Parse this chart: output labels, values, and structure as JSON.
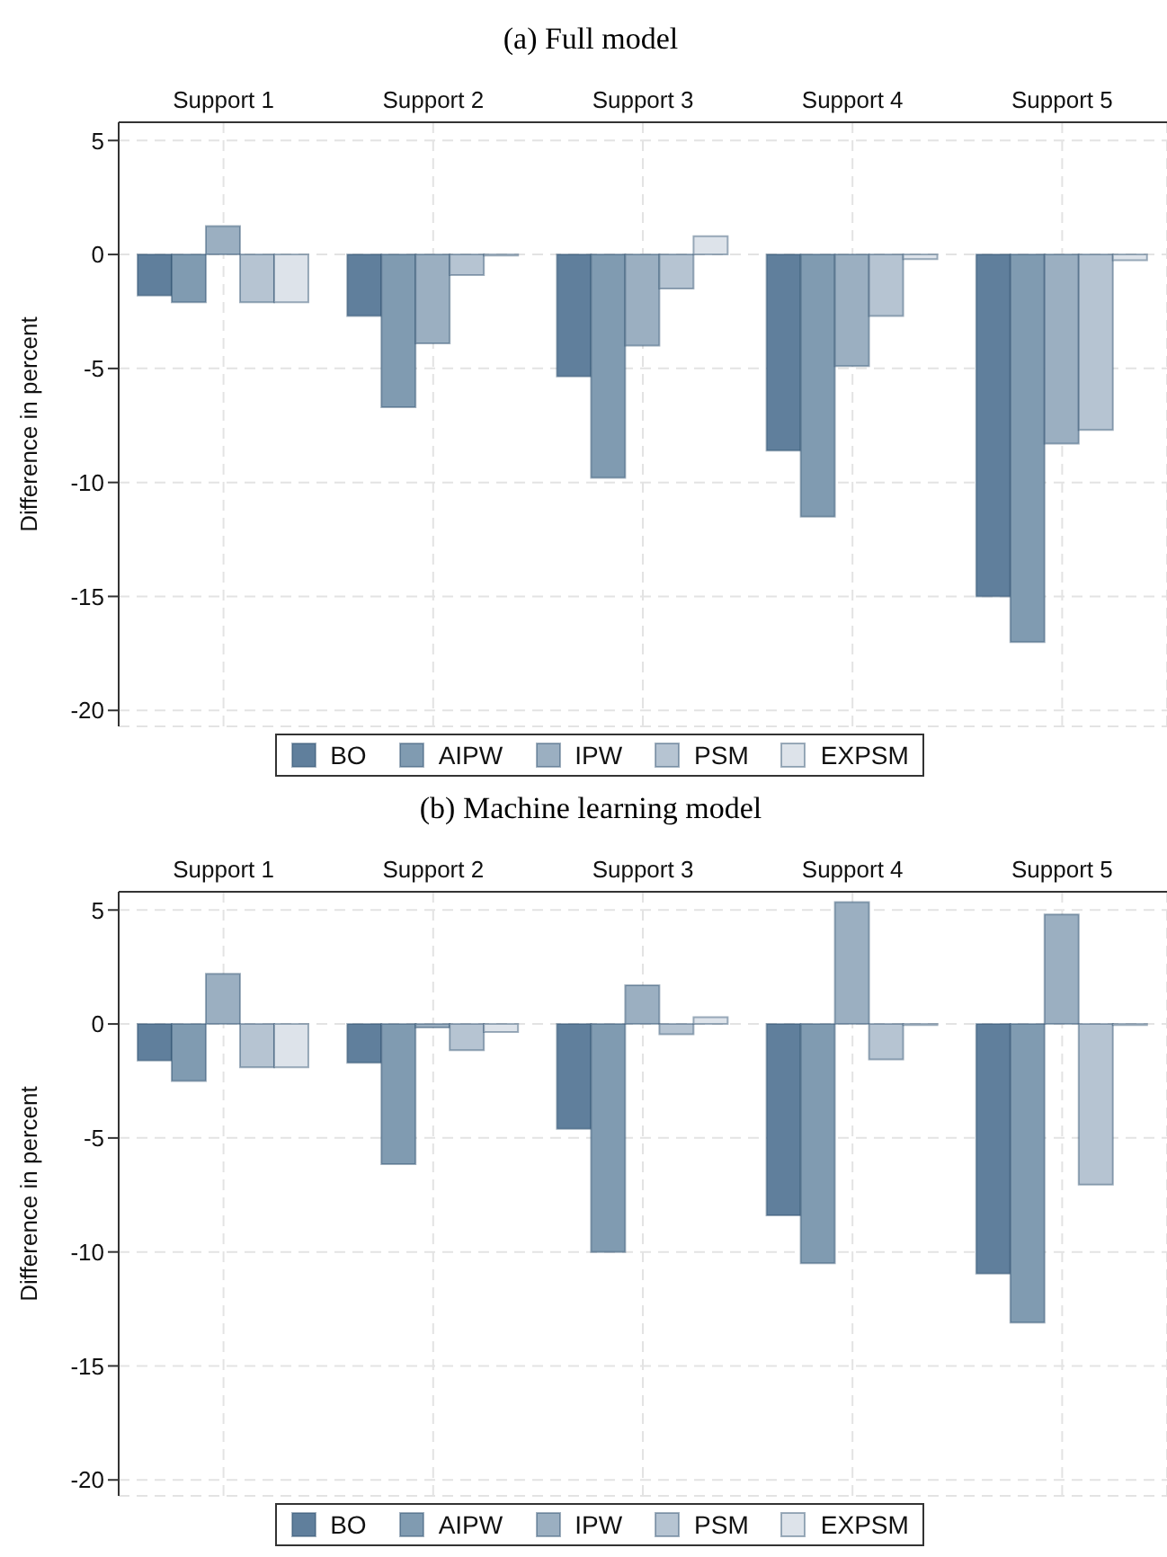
{
  "chart_data": [
    {
      "type": "bar",
      "title": "(a) Full model",
      "ylabel": "Difference in percent",
      "categories": [
        "Support 1",
        "Support 2",
        "Support 3",
        "Support 4",
        "Support 5"
      ],
      "ylim": [
        -20.7,
        5.8
      ],
      "yticks": [
        5,
        0,
        -5,
        -10,
        -15,
        -20
      ],
      "grid": true,
      "legend": "bottom",
      "series": [
        {
          "name": "BO",
          "color": "#607f9c",
          "values": [
            -1.8,
            -2.7,
            -5.35,
            -8.6,
            -15.0
          ]
        },
        {
          "name": "AIPW",
          "color": "#809bb1",
          "values": [
            -2.1,
            -6.7,
            -9.8,
            -11.5,
            -17.0
          ]
        },
        {
          "name": "IPW",
          "color": "#9bafc1",
          "values": [
            1.25,
            -3.9,
            -4.0,
            -4.9,
            -8.3
          ]
        },
        {
          "name": "PSM",
          "color": "#b6c4d2",
          "values": [
            -2.1,
            -0.9,
            -1.5,
            -2.7,
            -7.7
          ]
        },
        {
          "name": "EXPSM",
          "color": "#dde3ea",
          "values": [
            -2.1,
            -0.05,
            0.8,
            -0.2,
            -0.25
          ]
        }
      ]
    },
    {
      "type": "bar",
      "title": "(b) Machine learning model",
      "ylabel": "Difference in percent",
      "categories": [
        "Support 1",
        "Support 2",
        "Support 3",
        "Support 4",
        "Support 5"
      ],
      "ylim": [
        -20.7,
        5.8
      ],
      "yticks": [
        5,
        0,
        -5,
        -10,
        -15,
        -20
      ],
      "grid": true,
      "legend": "bottom",
      "series": [
        {
          "name": "BO",
          "color": "#607f9c",
          "values": [
            -1.6,
            -1.7,
            -4.6,
            -8.4,
            -10.95
          ]
        },
        {
          "name": "AIPW",
          "color": "#809bb1",
          "values": [
            -2.5,
            -6.15,
            -10.0,
            -10.5,
            -13.1
          ]
        },
        {
          "name": "IPW",
          "color": "#9bafc1",
          "values": [
            2.2,
            -0.15,
            1.7,
            5.35,
            4.8
          ]
        },
        {
          "name": "PSM",
          "color": "#b6c4d2",
          "values": [
            -1.9,
            -1.15,
            -0.45,
            -1.55,
            -7.05
          ]
        },
        {
          "name": "EXPSM",
          "color": "#dde3ea",
          "values": [
            -1.9,
            -0.35,
            0.3,
            -0.05,
            -0.05
          ]
        }
      ]
    }
  ]
}
